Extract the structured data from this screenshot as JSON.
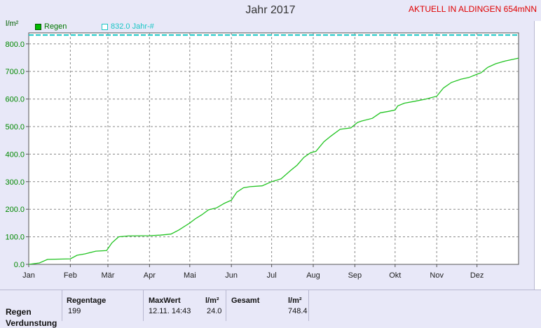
{
  "header": {
    "title": "Jahr 2017",
    "station": "AKTUELL IN ALDINGEN 654mNN",
    "y_unit": "l/m²"
  },
  "legend": {
    "rain_label": "Regen",
    "avg_label": "832.0 Jahr-#"
  },
  "colors": {
    "rain_line": "#22c422",
    "avg_line": "#19c6c6",
    "axis_text": "#008800",
    "background": "#e8e8f8",
    "plot_bg": "#ffffff"
  },
  "chart_data": {
    "type": "line",
    "title": "Jahr 2017",
    "ylabel": "l/m²",
    "xlabel": "",
    "ylim": [
      0,
      840
    ],
    "xlim": [
      0,
      365
    ],
    "grid": true,
    "yticks": [
      0,
      100,
      200,
      300,
      400,
      500,
      600,
      700,
      800
    ],
    "ytick_labels": [
      "0.0",
      "100.0",
      "200.0",
      "300.0",
      "400.0",
      "500.0",
      "600.0",
      "700.0",
      "800.0"
    ],
    "month_labels": [
      "Jan",
      "Feb",
      "Mär",
      "Apr",
      "Mai",
      "Jun",
      "Jul",
      "Aug",
      "Sep",
      "Okt",
      "Nov",
      "Dez"
    ],
    "month_starts": [
      0,
      31,
      59,
      90,
      120,
      151,
      181,
      212,
      243,
      273,
      304,
      334
    ],
    "series": [
      {
        "name": "Regen",
        "x": [
          0,
          8,
          14,
          31,
          36,
          42,
          50,
          58,
          62,
          67,
          74,
          90,
          98,
          106,
          112,
          120,
          124,
          129,
          134,
          140,
          146,
          151,
          155,
          160,
          165,
          174,
          181,
          188,
          195,
          200,
          205,
          210,
          214,
          220,
          225,
          232,
          240,
          245,
          248,
          256,
          262,
          268,
          273,
          275,
          280,
          288,
          296,
          304,
          309,
          315,
          322,
          328,
          334,
          337,
          342,
          348,
          355,
          365
        ],
        "y": [
          0,
          5,
          18,
          20,
          33,
          38,
          48,
          50,
          78,
          100,
          103,
          104,
          106,
          110,
          125,
          150,
          165,
          180,
          198,
          205,
          222,
          233,
          262,
          278,
          282,
          285,
          300,
          310,
          340,
          360,
          388,
          405,
          410,
          445,
          465,
          490,
          495,
          515,
          520,
          530,
          550,
          555,
          560,
          575,
          585,
          592,
          600,
          610,
          640,
          660,
          672,
          678,
          690,
          695,
          715,
          728,
          738,
          748.4
        ]
      },
      {
        "name": "832.0 Jahr-#",
        "x": [
          0,
          365
        ],
        "y": [
          832,
          832
        ]
      }
    ]
  },
  "stats": {
    "row_label": "Regen",
    "row_label_next": "Verdunstung",
    "rain_days_header": "Regentage",
    "rain_days_value": "199",
    "max_header": "MaxWert",
    "max_unit": "l/m²",
    "max_datetime": "12.11.  14:43",
    "max_value": "24.0",
    "total_header": "Gesamt",
    "total_unit": "l/m²",
    "total_value": "748.4"
  }
}
